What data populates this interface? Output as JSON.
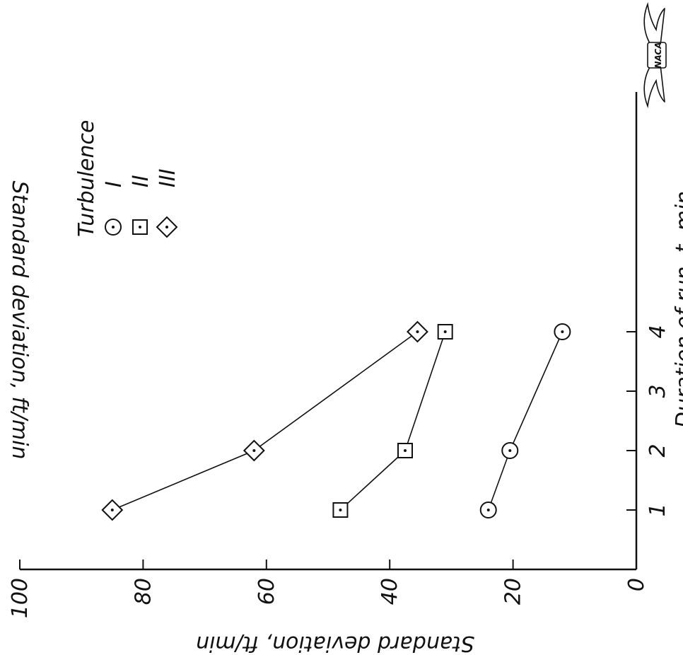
{
  "chart_data": {
    "type": "line",
    "xlabel": "Duration of run, t, min",
    "ylabel": "Standard deviation, ft/min",
    "top_label": "Standard deviation, ft/min",
    "x_ticks": [
      "1",
      "2",
      "3",
      "4"
    ],
    "y_ticks": [
      "0",
      "20",
      "40",
      "60",
      "80",
      "100"
    ],
    "xlim": [
      0.15,
      4.4
    ],
    "ylim": [
      0,
      100
    ],
    "x": [
      1,
      2,
      3,
      4
    ],
    "legend_title": "Turbulence",
    "legend_position": "top-left",
    "badge": "NACA",
    "series": [
      {
        "name": "I",
        "marker": "circle",
        "x": [
          1,
          2,
          4
        ],
        "values": [
          24,
          20.5,
          12
        ]
      },
      {
        "name": "II",
        "marker": "square",
        "x": [
          1,
          2,
          4
        ],
        "values": [
          48,
          37.5,
          31
        ]
      },
      {
        "name": "III",
        "marker": "diamond",
        "x": [
          1,
          2,
          4
        ],
        "values": [
          85,
          62,
          35.5
        ]
      }
    ]
  }
}
